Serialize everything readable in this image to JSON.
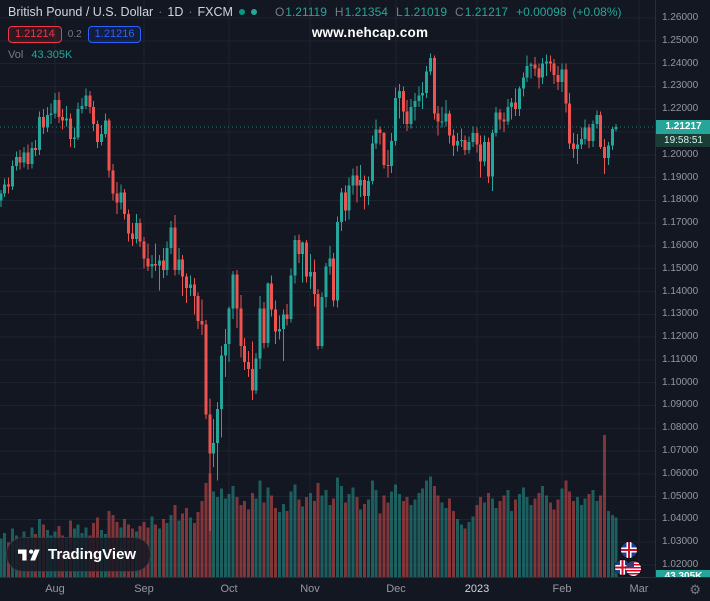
{
  "header": {
    "symbol_title": "British Pound / U.S. Dollar",
    "separator": "·",
    "interval": "1D",
    "exchange": "FXCM",
    "ohlc": {
      "o_label": "O",
      "o": "1.21119",
      "h_label": "H",
      "h": "1.21354",
      "l_label": "L",
      "l": "1.21019",
      "c_label": "C",
      "c": "1.21217",
      "change": "+0.00098",
      "change_pct": "(+0.08%)"
    },
    "bid": "1.21214",
    "spread": "0.2",
    "ask": "1.21216",
    "vol_label": "Vol",
    "vol_value": "43.305K"
  },
  "watermark": "www.nehcap.com",
  "price_scale": {
    "last_price": "1.21217",
    "countdown": "19:58:51",
    "volume_badge": "43.305K",
    "decimals": 5
  },
  "time_scale": {
    "gear_icon": "⚙"
  },
  "logo": {
    "text": "TradingView"
  },
  "colors": {
    "background": "#131722",
    "up": "#26a69a",
    "down": "#ef5350",
    "grid": "#1e2330",
    "axis_text": "#9598a1",
    "year_text": "#d1d4dc",
    "last_price_badge": "#26a69a",
    "bid": "#f23645",
    "ask": "#2962ff"
  },
  "chart_data": {
    "type": "candlestick",
    "title": "British Pound / U.S. Dollar, 1D, FXCM (GBPUSD daily candles with volume overlay)",
    "price_axis": {
      "min": 1.02,
      "max": 1.26,
      "tick": 0.01
    },
    "time_ticks": [
      {
        "label": "Aug",
        "index": 14
      },
      {
        "label": "Sep",
        "index": 37
      },
      {
        "label": "Oct",
        "index": 59
      },
      {
        "label": "Nov",
        "index": 80
      },
      {
        "label": "Dec",
        "index": 102
      },
      {
        "label": "2023",
        "index": 123,
        "year": true
      },
      {
        "label": "Feb",
        "index": 145
      },
      {
        "label": "Mar",
        "index": 165
      }
    ],
    "last_close": 1.21217,
    "candles": [
      [
        1.18,
        1.1845,
        1.177,
        1.183
      ],
      [
        1.183,
        1.1895,
        1.1815,
        1.187
      ],
      [
        1.187,
        1.19,
        1.183,
        1.186
      ],
      [
        1.186,
        1.1975,
        1.1845,
        1.195
      ],
      [
        1.195,
        1.2015,
        1.193,
        1.199
      ],
      [
        1.199,
        1.202,
        1.1935,
        1.1965
      ],
      [
        1.1965,
        1.2035,
        1.1945,
        1.201
      ],
      [
        1.201,
        1.2045,
        1.1935,
        1.196
      ],
      [
        1.196,
        1.2055,
        1.194,
        1.203
      ],
      [
        1.203,
        1.2065,
        1.1995,
        1.202
      ],
      [
        1.202,
        1.219,
        1.2,
        1.2165
      ],
      [
        1.2165,
        1.22,
        1.209,
        1.212
      ],
      [
        1.212,
        1.221,
        1.21,
        1.2175
      ],
      [
        1.2175,
        1.2225,
        1.2135,
        1.218
      ],
      [
        1.218,
        1.227,
        1.216,
        1.224
      ],
      [
        1.224,
        1.2275,
        1.214,
        1.2165
      ],
      [
        1.2165,
        1.22,
        1.211,
        1.215
      ],
      [
        1.215,
        1.2215,
        1.2125,
        1.216
      ],
      [
        1.216,
        1.218,
        1.2035,
        1.207
      ],
      [
        1.207,
        1.212,
        1.203,
        1.2075
      ],
      [
        1.2075,
        1.223,
        1.2065,
        1.22
      ],
      [
        1.22,
        1.225,
        1.218,
        1.2215
      ],
      [
        1.2215,
        1.229,
        1.22,
        1.226
      ],
      [
        1.226,
        1.228,
        1.218,
        1.221
      ],
      [
        1.221,
        1.2235,
        1.2105,
        1.2135
      ],
      [
        1.2135,
        1.215,
        1.203,
        1.2055
      ],
      [
        1.2055,
        1.213,
        1.204,
        1.209
      ],
      [
        1.209,
        1.218,
        1.2075,
        1.215
      ],
      [
        1.215,
        1.216,
        1.19,
        1.193
      ],
      [
        1.193,
        1.196,
        1.18,
        1.183
      ],
      [
        1.183,
        1.188,
        1.174,
        1.179
      ],
      [
        1.179,
        1.187,
        1.176,
        1.1835
      ],
      [
        1.1835,
        1.185,
        1.1715,
        1.174
      ],
      [
        1.174,
        1.176,
        1.162,
        1.1655
      ],
      [
        1.1655,
        1.17,
        1.16,
        1.163
      ],
      [
        1.163,
        1.174,
        1.161,
        1.17
      ],
      [
        1.17,
        1.172,
        1.1595,
        1.162
      ],
      [
        1.162,
        1.164,
        1.15,
        1.1545
      ],
      [
        1.1545,
        1.161,
        1.149,
        1.151
      ],
      [
        1.151,
        1.156,
        1.146,
        1.152
      ],
      [
        1.152,
        1.161,
        1.149,
        1.1515
      ],
      [
        1.1515,
        1.156,
        1.1405,
        1.1535
      ],
      [
        1.1535,
        1.159,
        1.146,
        1.1495
      ],
      [
        1.1495,
        1.162,
        1.147,
        1.159
      ],
      [
        1.159,
        1.171,
        1.1565,
        1.168
      ],
      [
        1.168,
        1.1735,
        1.147,
        1.1495
      ],
      [
        1.1495,
        1.159,
        1.1475,
        1.154
      ],
      [
        1.154,
        1.156,
        1.138,
        1.1465
      ],
      [
        1.1465,
        1.148,
        1.135,
        1.1415
      ],
      [
        1.1415,
        1.147,
        1.138,
        1.143
      ],
      [
        1.143,
        1.146,
        1.13,
        1.138
      ],
      [
        1.138,
        1.1395,
        1.1235,
        1.127
      ],
      [
        1.127,
        1.1365,
        1.121,
        1.1255
      ],
      [
        1.1255,
        1.1275,
        1.084,
        1.086
      ],
      [
        1.086,
        1.093,
        1.035,
        1.069
      ],
      [
        1.069,
        1.084,
        1.063,
        1.0735
      ],
      [
        1.0735,
        1.0915,
        1.057,
        1.0885
      ],
      [
        1.0885,
        1.116,
        1.076,
        1.112
      ],
      [
        1.112,
        1.1235,
        1.1025,
        1.117
      ],
      [
        1.117,
        1.1335,
        1.109,
        1.1325
      ],
      [
        1.1325,
        1.149,
        1.128,
        1.1475
      ],
      [
        1.1475,
        1.1495,
        1.124,
        1.1325
      ],
      [
        1.1325,
        1.1385,
        1.111,
        1.116
      ],
      [
        1.116,
        1.1195,
        1.1055,
        1.109
      ],
      [
        1.109,
        1.114,
        1.1025,
        1.106
      ],
      [
        1.106,
        1.118,
        1.0925,
        1.0965
      ],
      [
        1.0965,
        1.113,
        1.095,
        1.1105
      ],
      [
        1.1105,
        1.138,
        1.106,
        1.1325
      ],
      [
        1.1325,
        1.1355,
        1.115,
        1.1175
      ],
      [
        1.1175,
        1.144,
        1.1155,
        1.1435
      ],
      [
        1.1435,
        1.147,
        1.129,
        1.132
      ],
      [
        1.132,
        1.136,
        1.117,
        1.1225
      ],
      [
        1.1225,
        1.1295,
        1.119,
        1.1235
      ],
      [
        1.1235,
        1.132,
        1.1095,
        1.13
      ],
      [
        1.13,
        1.1345,
        1.125,
        1.128
      ],
      [
        1.128,
        1.15,
        1.1265,
        1.147
      ],
      [
        1.147,
        1.1645,
        1.1435,
        1.1625
      ],
      [
        1.1625,
        1.165,
        1.1525,
        1.1565
      ],
      [
        1.1565,
        1.162,
        1.144,
        1.1615
      ],
      [
        1.1615,
        1.1625,
        1.144,
        1.1465
      ],
      [
        1.1465,
        1.1565,
        1.141,
        1.1485
      ],
      [
        1.1485,
        1.154,
        1.1335,
        1.139
      ],
      [
        1.139,
        1.141,
        1.1145,
        1.116
      ],
      [
        1.116,
        1.1395,
        1.115,
        1.1375
      ],
      [
        1.1375,
        1.1525,
        1.133,
        1.151
      ],
      [
        1.151,
        1.16,
        1.1475,
        1.1545
      ],
      [
        1.1545,
        1.157,
        1.1335,
        1.136
      ],
      [
        1.136,
        1.173,
        1.133,
        1.1705
      ],
      [
        1.1705,
        1.1855,
        1.1665,
        1.1835
      ],
      [
        1.1835,
        1.1865,
        1.171,
        1.1755
      ],
      [
        1.1755,
        1.19,
        1.1715,
        1.1865
      ],
      [
        1.1865,
        1.194,
        1.1825,
        1.191
      ],
      [
        1.191,
        1.195,
        1.179,
        1.1865
      ],
      [
        1.1865,
        1.1955,
        1.1815,
        1.189
      ],
      [
        1.189,
        1.191,
        1.176,
        1.182
      ],
      [
        1.182,
        1.1905,
        1.178,
        1.1885
      ],
      [
        1.1885,
        1.2085,
        1.187,
        1.205
      ],
      [
        1.205,
        1.2155,
        1.2025,
        1.211
      ],
      [
        1.211,
        1.2125,
        1.2045,
        1.2095
      ],
      [
        1.2095,
        1.21,
        1.194,
        1.1955
      ],
      [
        1.1955,
        1.202,
        1.19,
        1.195
      ],
      [
        1.195,
        1.2095,
        1.192,
        1.206
      ],
      [
        1.206,
        1.2295,
        1.204,
        1.225
      ],
      [
        1.225,
        1.231,
        1.216,
        1.228
      ],
      [
        1.228,
        1.23,
        1.2135,
        1.219
      ],
      [
        1.219,
        1.224,
        1.2105,
        1.2135
      ],
      [
        1.2135,
        1.2245,
        1.2115,
        1.221
      ],
      [
        1.221,
        1.227,
        1.215,
        1.2235
      ],
      [
        1.2235,
        1.23,
        1.221,
        1.226
      ],
      [
        1.226,
        1.232,
        1.22,
        1.227
      ],
      [
        1.227,
        1.239,
        1.225,
        1.2365
      ],
      [
        1.2365,
        1.2445,
        1.235,
        1.2425
      ],
      [
        1.2425,
        1.2435,
        1.2155,
        1.218
      ],
      [
        1.218,
        1.2215,
        1.2085,
        1.2145
      ],
      [
        1.2145,
        1.221,
        1.212,
        1.2145
      ],
      [
        1.2145,
        1.224,
        1.2125,
        1.218
      ],
      [
        1.218,
        1.2195,
        1.205,
        1.2085
      ],
      [
        1.2085,
        1.211,
        1.1995,
        1.204
      ],
      [
        1.204,
        1.2095,
        1.2015,
        1.206
      ],
      [
        1.206,
        1.2115,
        1.2035,
        1.2065
      ],
      [
        1.2065,
        1.2085,
        1.2,
        1.202
      ],
      [
        1.202,
        1.208,
        1.2005,
        1.2055
      ],
      [
        1.2055,
        1.2125,
        1.2035,
        1.2095
      ],
      [
        1.2095,
        1.212,
        1.201,
        1.2045
      ],
      [
        1.2045,
        1.2085,
        1.19,
        1.197
      ],
      [
        1.197,
        1.2085,
        1.195,
        1.2055
      ],
      [
        1.2055,
        1.2075,
        1.1875,
        1.1905
      ],
      [
        1.1905,
        1.211,
        1.184,
        1.2095
      ],
      [
        1.2095,
        1.221,
        1.208,
        1.2185
      ],
      [
        1.2185,
        1.22,
        1.211,
        1.2155
      ],
      [
        1.2155,
        1.2185,
        1.21,
        1.2145
      ],
      [
        1.2145,
        1.2245,
        1.213,
        1.221
      ],
      [
        1.221,
        1.225,
        1.2155,
        1.223
      ],
      [
        1.223,
        1.229,
        1.217,
        1.22
      ],
      [
        1.22,
        1.23,
        1.217,
        1.229
      ],
      [
        1.229,
        1.236,
        1.2255,
        1.234
      ],
      [
        1.234,
        1.2435,
        1.232,
        1.239
      ],
      [
        1.239,
        1.2405,
        1.2335,
        1.2395
      ],
      [
        1.2395,
        1.243,
        1.2345,
        1.2378
      ],
      [
        1.2378,
        1.24,
        1.229,
        1.234
      ],
      [
        1.234,
        1.2425,
        1.231,
        1.24
      ],
      [
        1.24,
        1.244,
        1.2345,
        1.241
      ],
      [
        1.241,
        1.2435,
        1.2365,
        1.24
      ],
      [
        1.24,
        1.242,
        1.231,
        1.235
      ],
      [
        1.235,
        1.239,
        1.2285,
        1.232
      ],
      [
        1.232,
        1.24,
        1.2275,
        1.2375
      ],
      [
        1.2375,
        1.24,
        1.2185,
        1.2225
      ],
      [
        1.2225,
        1.227,
        1.2025,
        1.205
      ],
      [
        1.205,
        1.2095,
        1.1985,
        1.2025
      ],
      [
        1.2025,
        1.209,
        1.196,
        1.2045
      ],
      [
        1.2045,
        1.212,
        1.2025,
        1.207
      ],
      [
        1.207,
        1.2155,
        1.2045,
        1.212
      ],
      [
        1.212,
        1.2135,
        1.203,
        1.206
      ],
      [
        1.206,
        1.215,
        1.2035,
        1.2135
      ],
      [
        1.2135,
        1.2195,
        1.2115,
        1.2175
      ],
      [
        1.2175,
        1.219,
        1.2025,
        1.2035
      ],
      [
        1.2035,
        1.207,
        1.1915,
        1.1985
      ],
      [
        1.1985,
        1.2055,
        1.1955,
        1.204
      ],
      [
        1.204,
        1.2125,
        1.202,
        1.2112
      ],
      [
        1.21119,
        1.21354,
        1.21019,
        1.21217
      ]
    ],
    "volumes": [
      28,
      32,
      25,
      35,
      30,
      27,
      33,
      29,
      36,
      31,
      42,
      38,
      34,
      30,
      33,
      37,
      30,
      28,
      41,
      35,
      38,
      32,
      36,
      30,
      39,
      43,
      34,
      31,
      48,
      45,
      40,
      36,
      42,
      38,
      35,
      33,
      37,
      40,
      36,
      44,
      38,
      35,
      42,
      39,
      45,
      52,
      41,
      46,
      50,
      43,
      39,
      47,
      55,
      68,
      75,
      62,
      58,
      64,
      57,
      60,
      66,
      58,
      52,
      55,
      49,
      61,
      57,
      70,
      54,
      65,
      59,
      50,
      47,
      53,
      48,
      62,
      67,
      56,
      51,
      58,
      61,
      55,
      68,
      59,
      63,
      52,
      57,
      72,
      66,
      54,
      60,
      65,
      58,
      49,
      53,
      56,
      70,
      63,
      46,
      59,
      54,
      62,
      67,
      60,
      55,
      58,
      52,
      56,
      61,
      64,
      70,
      73,
      66,
      59,
      54,
      50,
      57,
      48,
      42,
      38,
      35,
      40,
      44,
      52,
      58,
      54,
      61,
      57,
      50,
      55,
      59,
      63,
      48,
      56,
      60,
      65,
      58,
      52,
      57,
      61,
      66,
      59,
      54,
      49,
      56,
      64,
      70,
      62,
      55,
      58,
      52,
      57,
      60,
      63,
      55,
      59,
      103,
      48,
      45,
      43.3
    ],
    "volume_unit": "K",
    "current_volume": "43.305K"
  }
}
